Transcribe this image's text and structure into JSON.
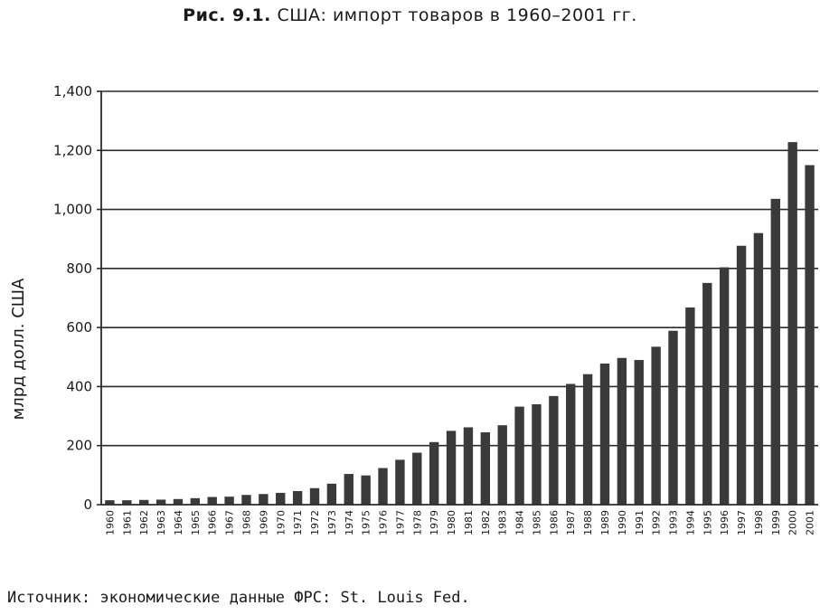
{
  "title": {
    "prefix": "Рис. 9.1.",
    "text": "США: импорт товаров в 1960–2001 гг."
  },
  "source": "Источник: экономические данные ФРС: St. Louis Fed.",
  "colors": {
    "bar": "#3a3a3a",
    "grid": "#2a2a2a",
    "text": "#1a1a1a"
  },
  "chart_data": {
    "type": "bar",
    "ylabel": "млрд долл. США",
    "ylim": [
      0,
      1400
    ],
    "yticks": [
      0,
      200,
      400,
      600,
      800,
      1000,
      1200,
      1400
    ],
    "ytick_labels": [
      "0",
      "200",
      "400",
      "600",
      "800",
      "1,000",
      "1,200",
      "1,400"
    ],
    "grid": true,
    "categories": [
      "1960",
      "1961",
      "1962",
      "1963",
      "1964",
      "1965",
      "1966",
      "1967",
      "1968",
      "1969",
      "1970",
      "1971",
      "1972",
      "1973",
      "1974",
      "1975",
      "1976",
      "1977",
      "1978",
      "1979",
      "1980",
      "1981",
      "1982",
      "1983",
      "1984",
      "1985",
      "1986",
      "1987",
      "1988",
      "1989",
      "1990",
      "1991",
      "1992",
      "1993",
      "1994",
      "1995",
      "1996",
      "1997",
      "1998",
      "1999",
      "2000",
      "2001"
    ],
    "values": [
      15,
      15,
      16,
      17,
      19,
      22,
      26,
      27,
      33,
      36,
      40,
      46,
      56,
      71,
      104,
      99,
      124,
      152,
      176,
      212,
      250,
      262,
      245,
      269,
      332,
      340,
      368,
      409,
      442,
      478,
      497,
      490,
      535,
      589,
      668,
      751,
      804,
      877,
      920,
      1036,
      1228,
      1150
    ]
  }
}
